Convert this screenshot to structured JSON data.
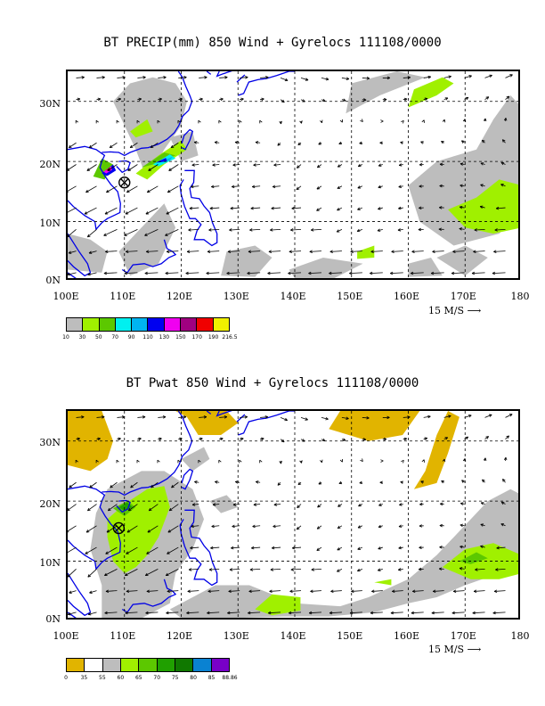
{
  "panels": [
    {
      "title": "BT PRECIP(mm) 850 Wind + Gyrelocs 111108/0000",
      "y_labels": [
        "30N",
        "20N",
        "10N",
        "0N"
      ],
      "x_labels": [
        "100E",
        "110E",
        "120E",
        "130E",
        "140E",
        "150E",
        "160E",
        "170E",
        "180"
      ],
      "scale_label": "15 M/S",
      "colorbar": {
        "colors": [
          "#bdbdbd",
          "#a0f000",
          "#5cc800",
          "#00f0f0",
          "#00b4f0",
          "#0000f0",
          "#f000f0",
          "#a00080",
          "#f00000",
          "#f0f000"
        ],
        "labels": [
          "10",
          "30",
          "50",
          "70",
          "90",
          "110",
          "130",
          "150",
          "170",
          "190",
          "216.5"
        ]
      },
      "gyre_marker": {
        "lon": 110.0,
        "lat": 16.5
      }
    },
    {
      "title": "BT Pwat 850 Wind + Gyrelocs 111108/0000",
      "y_labels": [
        "30N",
        "20N",
        "10N",
        "0N"
      ],
      "x_labels": [
        "100E",
        "110E",
        "120E",
        "130E",
        "140E",
        "150E",
        "160E",
        "170E",
        "180"
      ],
      "scale_label": "15 M/S",
      "colorbar": {
        "colors": [
          "#e1b400",
          "#ffffff",
          "#bdbdbd",
          "#a0f000",
          "#5cc800",
          "#20a000",
          "#107800",
          "#0a82d2",
          "#7800c8"
        ],
        "labels": [
          "0",
          "35",
          "55",
          "60",
          "65",
          "70",
          "75",
          "80",
          "85",
          "88.86"
        ]
      },
      "gyre_marker": {
        "lon": 109.0,
        "lat": 15.5
      }
    }
  ],
  "map_extent": {
    "lon": [
      100,
      180
    ],
    "lat": [
      0,
      35
    ]
  }
}
